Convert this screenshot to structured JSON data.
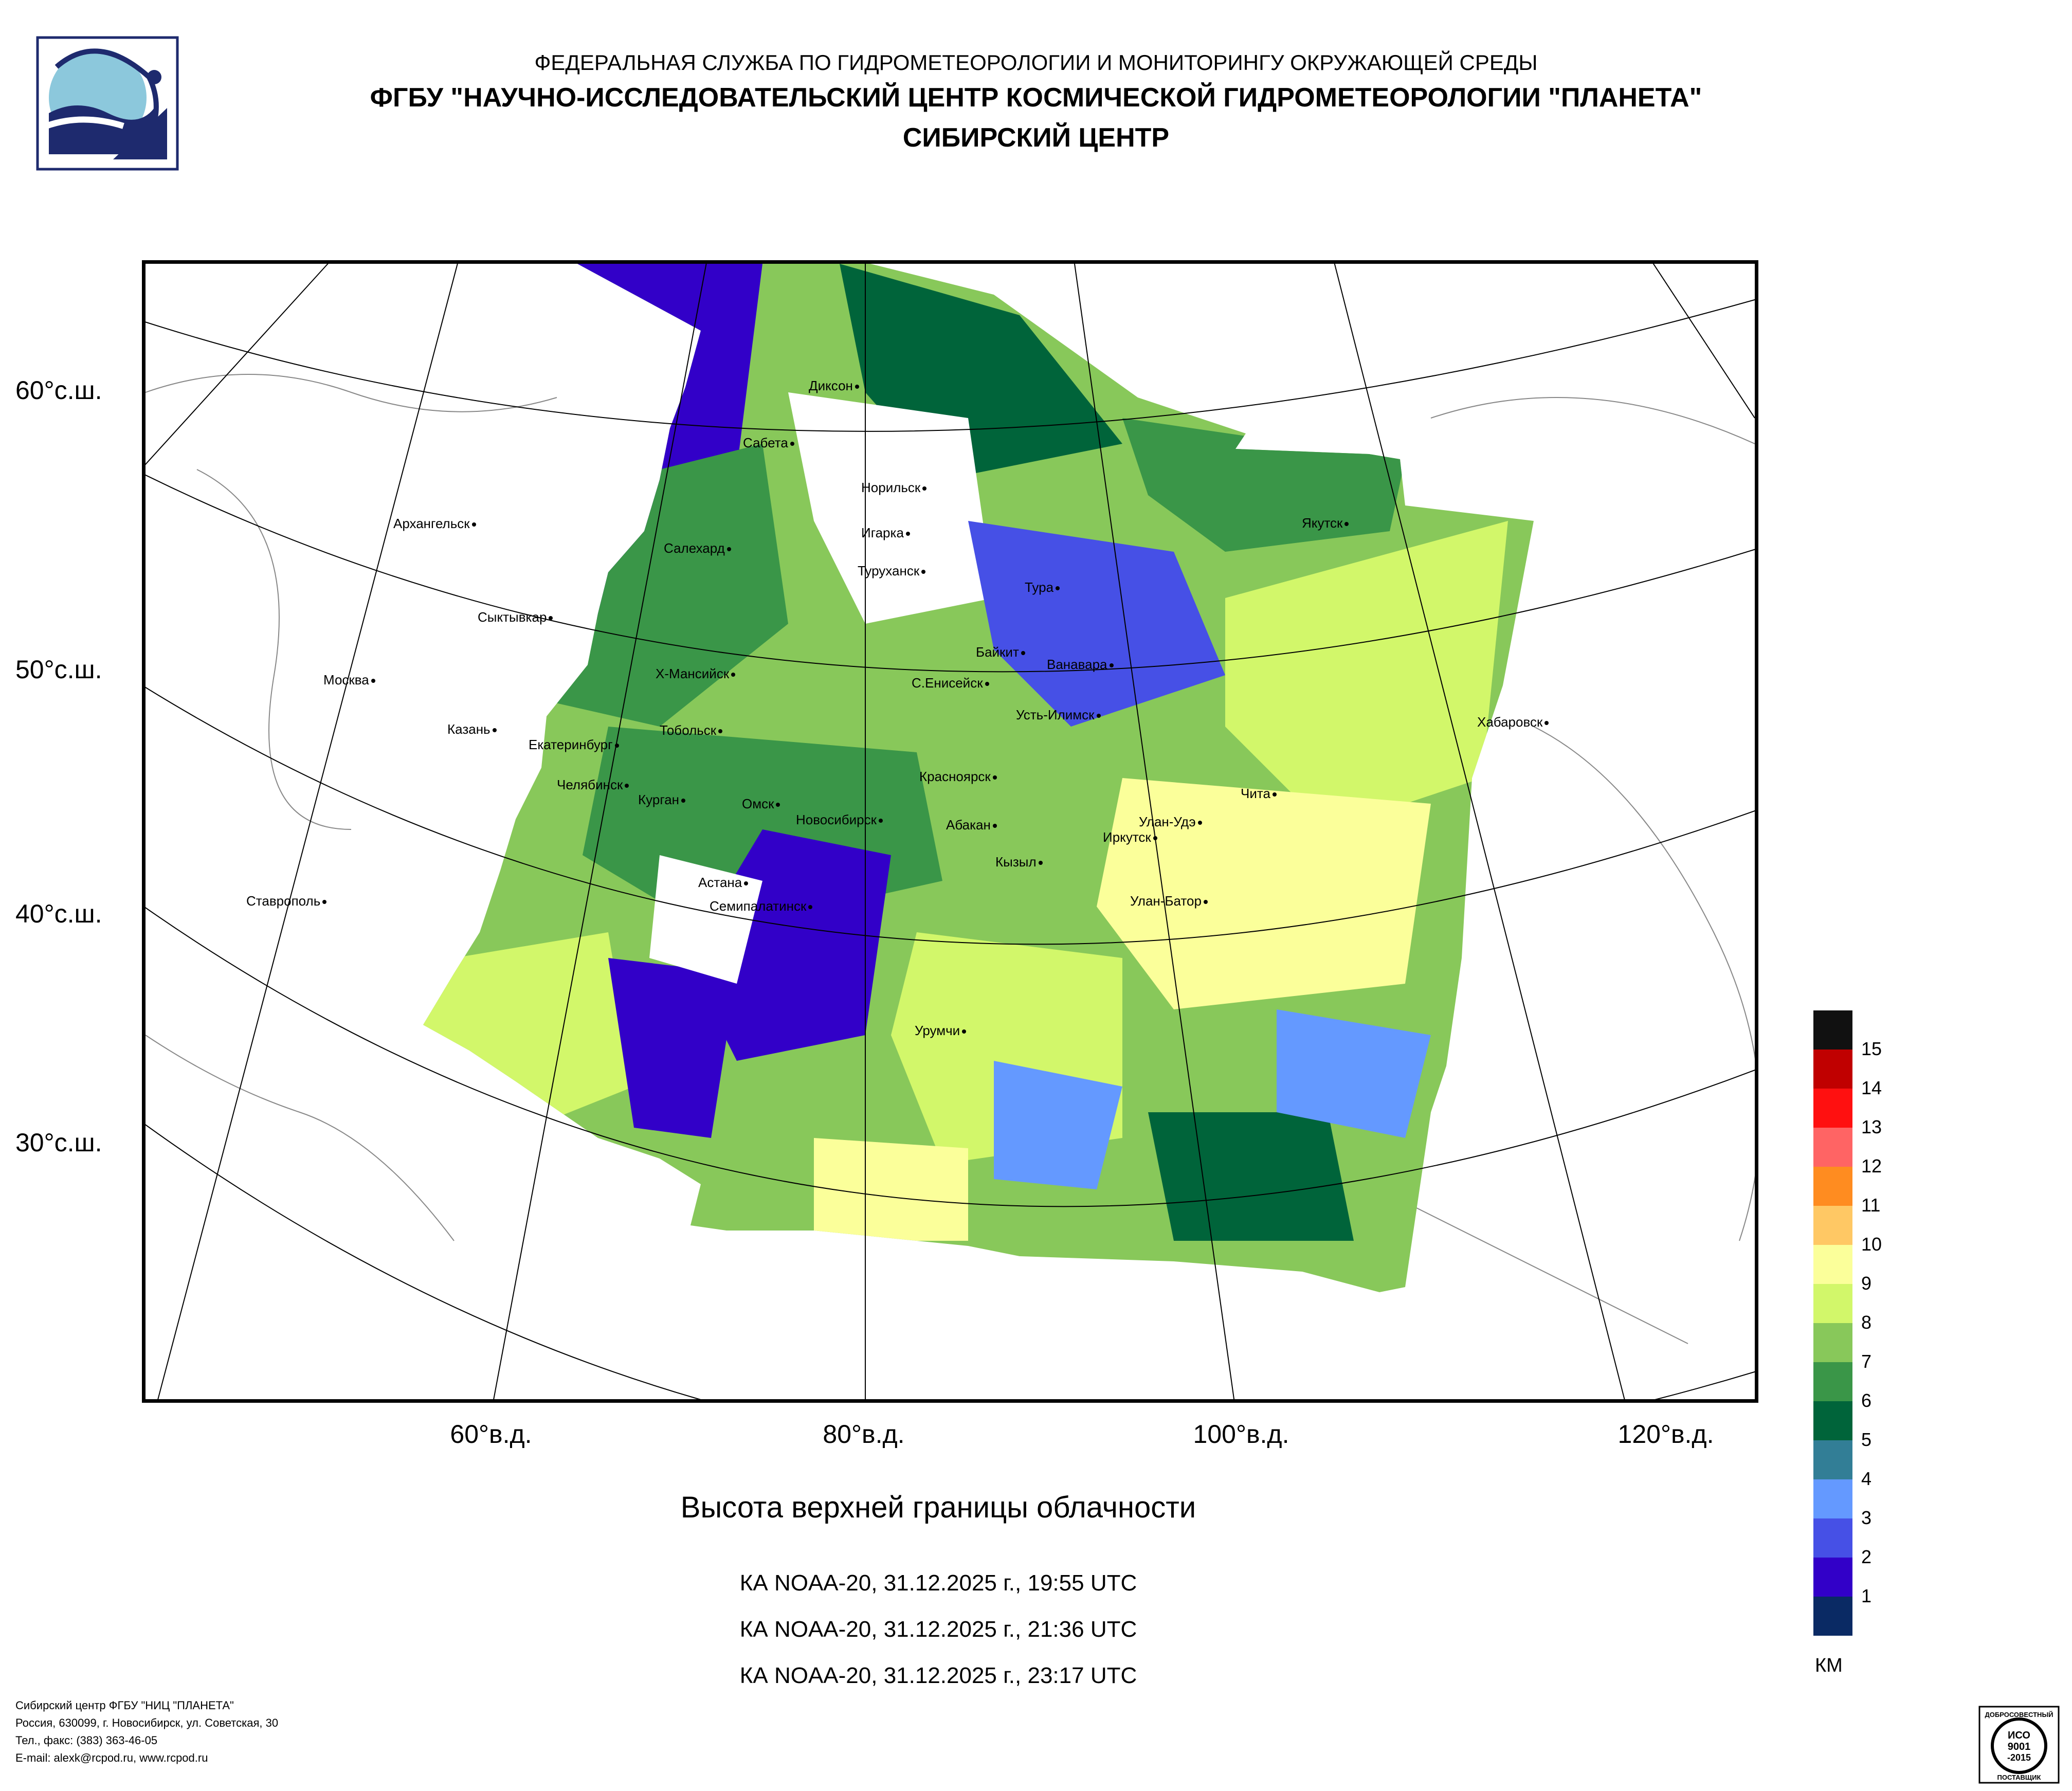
{
  "header": {
    "line1": "ФЕДЕРАЛЬНАЯ СЛУЖБА ПО ГИДРОМЕТЕОРОЛОГИИ И МОНИТОРИНГУ ОКРУЖАЮЩЕЙ СРЕДЫ",
    "line2": "ФГБУ \"НАУЧНО-ИССЛЕДОВАТЕЛЬСКИЙ ЦЕНТР КОСМИЧЕСКОЙ ГИДРОМЕТЕОРОЛОГИИ \"ПЛАНЕТА\"",
    "line3": "СИБИРСКИЙ ЦЕНТР"
  },
  "axes": {
    "latitudes": [
      "60°с.ш.",
      "50°с.ш.",
      "40°с.ш.",
      "30°с.ш."
    ],
    "longitudes": [
      "60°в.д.",
      "80°в.д.",
      "100°в.д.",
      "120°в.д."
    ]
  },
  "cities": [
    "Диксон",
    "Сабета",
    "Норильск",
    "Архангельск",
    "Якутск",
    "Игарка",
    "Салехард",
    "Туруханск",
    "Тура",
    "Сыктывкар",
    "Байкит",
    "Ванавара",
    "Москва",
    "Х-Мансийск",
    "С.Енисейск",
    "Хабаровск",
    "Усть-Илимск",
    "Казань",
    "Тобольск",
    "Екатеринбург",
    "Красноярск",
    "Челябинск",
    "Чита",
    "Курган",
    "Омск",
    "Новосибирск",
    "Абакан",
    "Улан-Удэ",
    "Иркутск",
    "Кызыл",
    "Астана",
    "Ставрополь",
    "Улан-Батор",
    "Семипалатинск",
    "Урумчи"
  ],
  "map": {
    "title": "Высота верхней границы облачности",
    "passes": [
      "КА NOAA-20, 31.12.2025 г., 19:55 UTC",
      "КА NOAA-20, 31.12.2025 г., 21:36 UTC",
      "КА NOAA-20, 31.12.2025 г., 23:17 UTC"
    ]
  },
  "legend": {
    "unit": "КМ",
    "levels": [
      "15",
      "14",
      "13",
      "12",
      "11",
      "10",
      "9",
      "8",
      "7",
      "6",
      "5",
      "4",
      "3",
      "2",
      "1"
    ],
    "colors": [
      "#111111",
      "#c00000",
      "#ff1010",
      "#ff6464",
      "#ff8c20",
      "#ffc864",
      "#fbff9a",
      "#d2f76a",
      "#88c85a",
      "#3a9648",
      "#00643a",
      "#327e96",
      "#6499ff",
      "#4650e6",
      "#3200c8",
      "#0a2a64"
    ]
  },
  "footer": {
    "line1": "Сибирский центр ФГБУ \"НИЦ \"ПЛАНЕТА\"",
    "line2": "Россия, 630099, г. Новосибирск, ул. Советская, 30",
    "line3": "Тел., факс: (383) 363-46-05",
    "line4": "E-mail: alexk@rcpod.ru, www.rcpod.ru"
  },
  "cert": {
    "top": "ДОБРОСОВЕСТНЫЙ",
    "code1": "ИСО",
    "code2": "9001",
    "code3": "-2015",
    "bottom": "ПОСТАВЩИК"
  }
}
